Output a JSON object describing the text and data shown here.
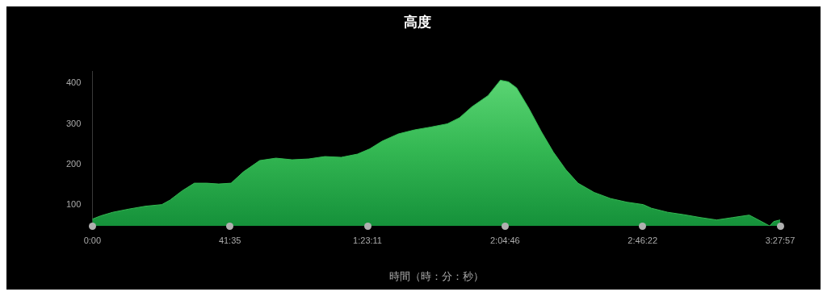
{
  "chart_data": {
    "type": "area",
    "title": "高度",
    "xlabel": "時間（時：分：秒）",
    "xlim": [
      0,
      207.95
    ],
    "xticks": [
      {
        "value": 0,
        "label": "0:00"
      },
      {
        "value": 41.583,
        "label": "41:35"
      },
      {
        "value": 83.183,
        "label": "1:23:11"
      },
      {
        "value": 124.767,
        "label": "2:04:46"
      },
      {
        "value": 166.367,
        "label": "2:46:22"
      },
      {
        "value": 207.95,
        "label": "3:27:57"
      }
    ],
    "ylim": [
      47,
      430
    ],
    "yticks": [
      100,
      200,
      300,
      400
    ],
    "grid": false,
    "legend": false,
    "series": [
      {
        "color": "#34b853",
        "x": [
          0,
          2.46,
          6.18,
          11.1,
          16.02,
          21,
          23.46,
          27.12,
          30.84,
          34.56,
          38.22,
          41.94,
          45.66,
          50.58,
          55.5,
          60.42,
          65.4,
          70.32,
          75.24,
          80.16,
          83.88,
          87.6,
          92.52,
          97.44,
          102.36,
          107.34,
          111,
          114.72,
          119.64,
          123.36,
          125.82,
          128.28,
          132,
          135.72,
          139.38,
          143.1,
          146.82,
          151.74,
          156.66,
          161.58,
          166.56,
          169.02,
          173.94,
          178.86,
          183.78,
          188.76,
          193.68,
          198.6,
          202.32,
          204.78,
          205.98,
          207.95
        ],
        "values": [
          64,
          72,
          81,
          89,
          96,
          100,
          111,
          134,
          153,
          153,
          151,
          153,
          181,
          209,
          215,
          211,
          213,
          219,
          217,
          225,
          238,
          257,
          275,
          285,
          292,
          300,
          315,
          342,
          370,
          408,
          404,
          389,
          338,
          281,
          230,
          187,
          153,
          130,
          115,
          106,
          100,
          91,
          81,
          75,
          68,
          62,
          68,
          74,
          58,
          47,
          58,
          62
        ]
      }
    ]
  }
}
